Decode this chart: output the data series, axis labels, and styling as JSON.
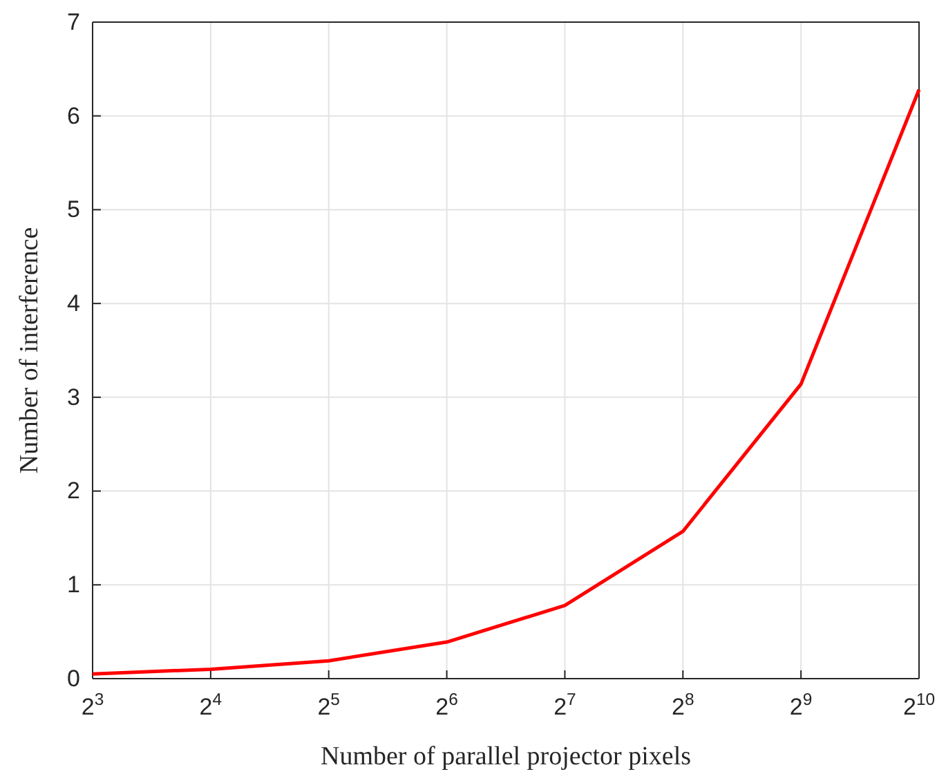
{
  "chart_data": {
    "type": "line",
    "xlabel": "Number of parallel projector pixels",
    "ylabel": "Number of interference",
    "x": [
      8,
      16,
      32,
      64,
      128,
      256,
      512,
      1024
    ],
    "series": [
      {
        "color": "#ff0000",
        "values": [
          0.05,
          0.1,
          0.19,
          0.39,
          0.78,
          1.57,
          3.14,
          6.28
        ]
      }
    ],
    "log": "x",
    "xlim": [
      8,
      1024
    ],
    "xticks": [
      {
        "value": 8,
        "label": "2$^{3}$"
      },
      {
        "value": 16,
        "label": "2$^{4}$"
      },
      {
        "value": 32,
        "label": "2$^{5}$"
      },
      {
        "value": 64,
        "label": "2$^{6}$"
      },
      {
        "value": 128,
        "label": "2$^{7}$"
      },
      {
        "value": 256,
        "label": "2$^{8}$"
      },
      {
        "value": 512,
        "label": "2$^{9}$"
      },
      {
        "value": 1024,
        "label": "2$^{10}$"
      }
    ],
    "ylim": [
      0,
      7
    ],
    "yticks": [
      0,
      1,
      2,
      3,
      4,
      5,
      6,
      7
    ],
    "grid": true,
    "line_style": "solid",
    "marker": "none"
  }
}
